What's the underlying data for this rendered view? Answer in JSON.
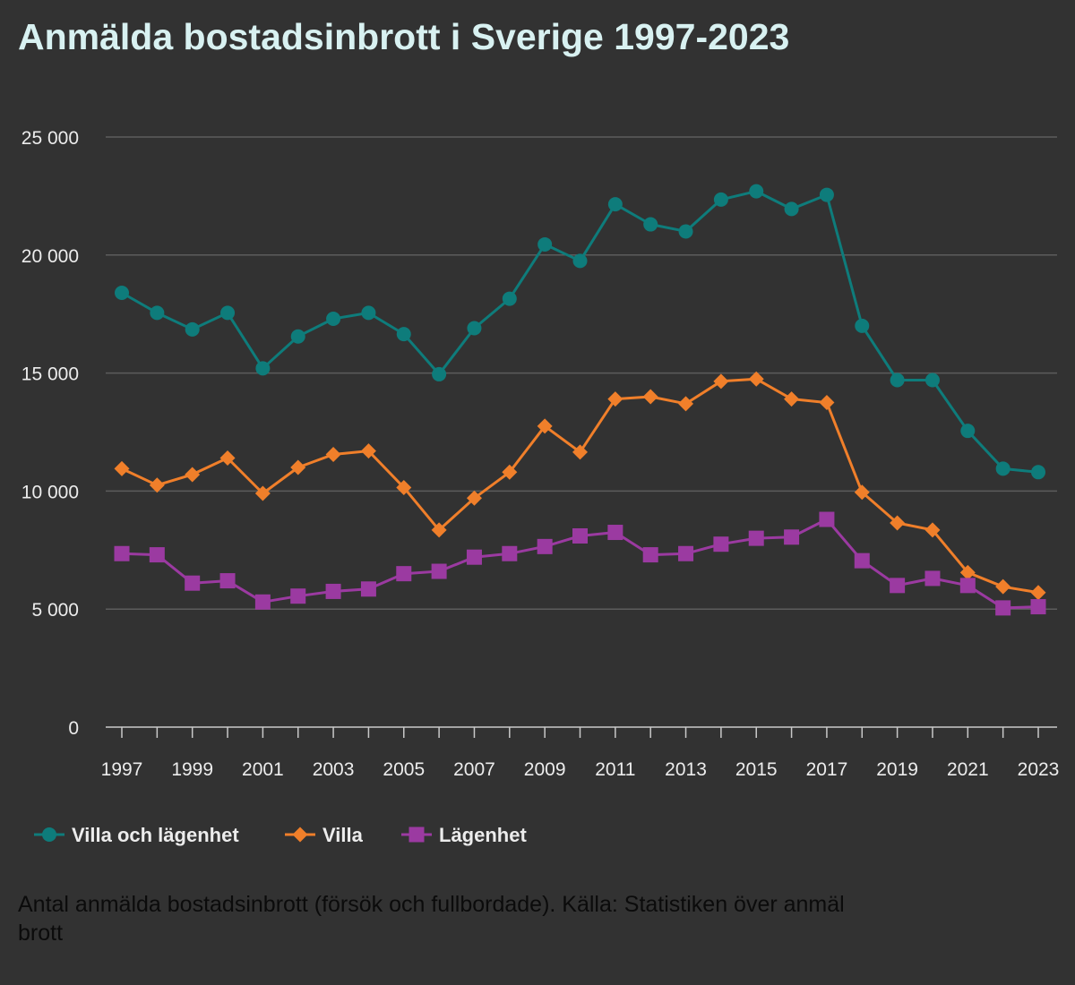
{
  "title": "Anmälda bostadsinbrott i Sverige 1997-2023",
  "caption": {
    "line1": "Antal anmälda bostadsinbrott (försök och fullbordade). Källa: Statistiken över anmäl",
    "line2": "brott"
  },
  "colors": {
    "background": "#323232",
    "title": "#d8f1f1",
    "text": "#ececec",
    "gridline": "#5c5c5c",
    "caption": "#0b0b0b"
  },
  "chart_data": {
    "type": "line",
    "title": "Anmälda bostadsinbrott i Sverige 1997-2023",
    "xlabel": "",
    "ylabel": "",
    "ylim": [
      0,
      25000
    ],
    "y_ticks": [
      0,
      5000,
      10000,
      15000,
      20000,
      25000
    ],
    "y_tick_labels": [
      "0",
      "5 000",
      "10 000",
      "15 000",
      "20 000",
      "25 000"
    ],
    "x_tick_labels": [
      "1997",
      "1999",
      "2001",
      "2003",
      "2005",
      "2007",
      "2009",
      "2011",
      "2013",
      "2015",
      "2017",
      "2019",
      "2021",
      "2023"
    ],
    "grid": true,
    "legend_position": "bottom-left",
    "x": [
      1997,
      1998,
      1999,
      2000,
      2001,
      2002,
      2003,
      2004,
      2005,
      2006,
      2007,
      2008,
      2009,
      2010,
      2011,
      2012,
      2013,
      2014,
      2015,
      2016,
      2017,
      2018,
      2019,
      2020,
      2021,
      2022,
      2023
    ],
    "series": [
      {
        "name": "Villa och lägenhet",
        "color": "#0e7c7b",
        "marker": "circle",
        "values": [
          18400,
          17550,
          16850,
          17550,
          15200,
          16550,
          17300,
          17550,
          16650,
          14950,
          16900,
          18150,
          20450,
          19750,
          22150,
          21300,
          21000,
          22350,
          22700,
          21950,
          22550,
          17000,
          14700,
          14700,
          12550,
          10950,
          10800
        ]
      },
      {
        "name": "Villa",
        "color": "#f07f2a",
        "marker": "diamond",
        "values": [
          10950,
          10250,
          10700,
          11400,
          9900,
          11000,
          11550,
          11700,
          10150,
          8350,
          9700,
          10800,
          12750,
          11650,
          13900,
          14000,
          13700,
          14650,
          14750,
          13900,
          13750,
          9950,
          8650,
          8350,
          6550,
          5950,
          5700
        ]
      },
      {
        "name": "Lägenhet",
        "color": "#9b3aa1",
        "marker": "square",
        "values": [
          7350,
          7300,
          6100,
          6200,
          5300,
          5550,
          5750,
          5850,
          6500,
          6600,
          7200,
          7350,
          7650,
          8100,
          8250,
          7300,
          7350,
          7750,
          8000,
          8050,
          8800,
          7050,
          6000,
          6300,
          6000,
          5050,
          5100
        ]
      }
    ]
  }
}
